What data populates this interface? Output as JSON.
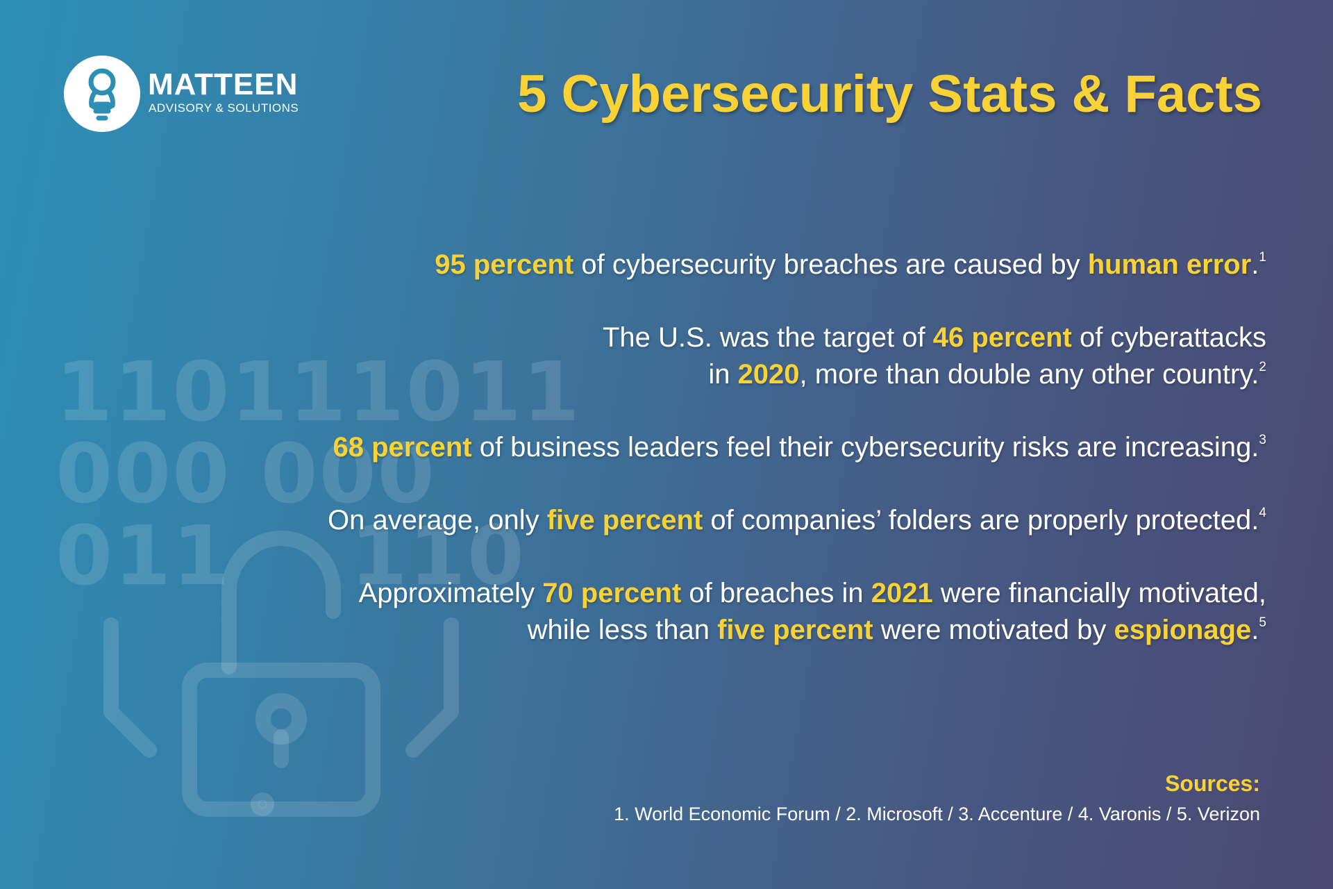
{
  "logo": {
    "name": "MATTEEN",
    "tagline": "ADVISORY & SOLUTIONS"
  },
  "title": "5 Cybersecurity Stats & Facts",
  "background_digits": [
    "110111011",
    "000 000",
    "011    110"
  ],
  "facts": [
    {
      "lines": [
        [
          {
            "text": "95 percent",
            "highlight": true
          },
          {
            "text": " of cybersecurity breaches are caused by ",
            "highlight": false
          },
          {
            "text": "human error",
            "highlight": true
          },
          {
            "text": ".",
            "highlight": false
          }
        ]
      ],
      "note": "1"
    },
    {
      "lines": [
        [
          {
            "text": "The U.S. was the target of ",
            "highlight": false
          },
          {
            "text": "46 percent",
            "highlight": true
          },
          {
            "text": " of cyberattacks",
            "highlight": false
          }
        ],
        [
          {
            "text": "in ",
            "highlight": false
          },
          {
            "text": "2020",
            "highlight": true
          },
          {
            "text": ", more than double any other country.",
            "highlight": false
          }
        ]
      ],
      "note": "2"
    },
    {
      "lines": [
        [
          {
            "text": "68 percent",
            "highlight": true
          },
          {
            "text": " of business leaders feel their cybersecurity risks are increasing.",
            "highlight": false
          }
        ]
      ],
      "note": "3"
    },
    {
      "lines": [
        [
          {
            "text": "On average, only ",
            "highlight": false
          },
          {
            "text": "five percent",
            "highlight": true
          },
          {
            "text": " of companies’ folders are properly protected.",
            "highlight": false
          }
        ]
      ],
      "note": "4"
    },
    {
      "lines": [
        [
          {
            "text": "Approximately ",
            "highlight": false
          },
          {
            "text": "70 percent",
            "highlight": true
          },
          {
            "text": " of breaches in ",
            "highlight": false
          },
          {
            "text": "2021",
            "highlight": true
          },
          {
            "text": " were financially motivated,",
            "highlight": false
          }
        ],
        [
          {
            "text": "while less than ",
            "highlight": false
          },
          {
            "text": "five percent",
            "highlight": true
          },
          {
            "text": " were motivated by ",
            "highlight": false
          },
          {
            "text": "espionage",
            "highlight": true
          },
          {
            "text": ".",
            "highlight": false
          }
        ]
      ],
      "note": "5"
    }
  ],
  "sources": {
    "label": "Sources:",
    "text": "1. World Economic Forum / 2. Microsoft / 3. Accenture / 4. Varonis / 5. Verizon"
  }
}
